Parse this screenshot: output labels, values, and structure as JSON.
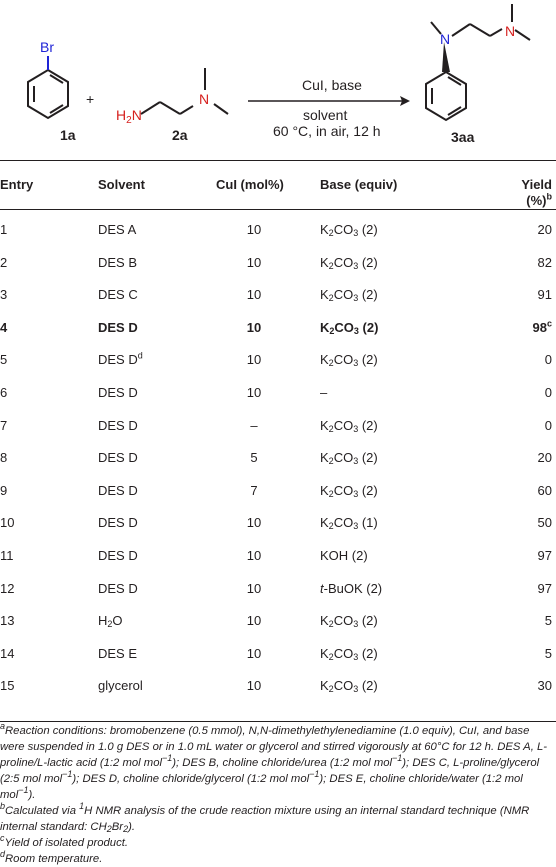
{
  "scheme": {
    "reactant1_substituent": "Br",
    "reactant1_label": "1a",
    "plus": "+",
    "reactant2_h2n": "H2N",
    "reactant2_n": "N",
    "reactant2_label": "2a",
    "catalyst_text": "CuI, base",
    "solvent_text": "solvent",
    "conditions_text": "60 °C, in air, 12 h",
    "product_n1": "N",
    "product_n2": "N",
    "product_label": "3aa"
  },
  "table": {
    "headers": {
      "entry": "Entry",
      "solvent": "Solvent",
      "cui": "CuI (mol%)",
      "base": "Base (equiv)",
      "yield_line1": "Yield",
      "yield_line2": "(%)",
      "yield_sup": "b"
    },
    "rows": [
      {
        "entry": "1",
        "solvent": "DES A",
        "solvent_sup": "",
        "cui": "10",
        "base_pre": "K",
        "base_sub1": "2",
        "base_mid": "CO",
        "base_sub2": "3",
        "base_post": " (2)",
        "yield": "20",
        "yield_sup": "",
        "bold": false
      },
      {
        "entry": "2",
        "solvent": "DES B",
        "solvent_sup": "",
        "cui": "10",
        "base_pre": "K",
        "base_sub1": "2",
        "base_mid": "CO",
        "base_sub2": "3",
        "base_post": " (2)",
        "yield": "82",
        "yield_sup": "",
        "bold": false
      },
      {
        "entry": "3",
        "solvent": "DES C",
        "solvent_sup": "",
        "cui": "10",
        "base_pre": "K",
        "base_sub1": "2",
        "base_mid": "CO",
        "base_sub2": "3",
        "base_post": " (2)",
        "yield": "91",
        "yield_sup": "",
        "bold": false
      },
      {
        "entry": "4",
        "solvent": "DES D",
        "solvent_sup": "",
        "cui": "10",
        "base_pre": "K",
        "base_sub1": "2",
        "base_mid": "CO",
        "base_sub2": "3",
        "base_post": " (2)",
        "yield": "98",
        "yield_sup": "c",
        "bold": true
      },
      {
        "entry": "5",
        "solvent": "DES D",
        "solvent_sup": "d",
        "cui": "10",
        "base_pre": "K",
        "base_sub1": "2",
        "base_mid": "CO",
        "base_sub2": "3",
        "base_post": " (2)",
        "yield": "0",
        "yield_sup": "",
        "bold": false
      },
      {
        "entry": "6",
        "solvent": "DES D",
        "solvent_sup": "",
        "cui": "10",
        "base_pre": "–",
        "base_sub1": "",
        "base_mid": "",
        "base_sub2": "",
        "base_post": "",
        "yield": "0",
        "yield_sup": "",
        "bold": false
      },
      {
        "entry": "7",
        "solvent": "DES D",
        "solvent_sup": "",
        "cui": "–",
        "base_pre": "K",
        "base_sub1": "2",
        "base_mid": "CO",
        "base_sub2": "3",
        "base_post": " (2)",
        "yield": "0",
        "yield_sup": "",
        "bold": false
      },
      {
        "entry": "8",
        "solvent": "DES D",
        "solvent_sup": "",
        "cui": "5",
        "base_pre": "K",
        "base_sub1": "2",
        "base_mid": "CO",
        "base_sub2": "3",
        "base_post": " (2)",
        "yield": "20",
        "yield_sup": "",
        "bold": false
      },
      {
        "entry": "9",
        "solvent": "DES D",
        "solvent_sup": "",
        "cui": "7",
        "base_pre": "K",
        "base_sub1": "2",
        "base_mid": "CO",
        "base_sub2": "3",
        "base_post": " (2)",
        "yield": "60",
        "yield_sup": "",
        "bold": false
      },
      {
        "entry": "10",
        "solvent": "DES D",
        "solvent_sup": "",
        "cui": "10",
        "base_pre": "K",
        "base_sub1": "2",
        "base_mid": "CO",
        "base_sub2": "3",
        "base_post": " (1)",
        "yield": "50",
        "yield_sup": "",
        "bold": false
      },
      {
        "entry": "11",
        "solvent": "DES D",
        "solvent_sup": "",
        "cui": "10",
        "base_pre": "KOH (2)",
        "base_sub1": "",
        "base_mid": "",
        "base_sub2": "",
        "base_post": "",
        "yield": "97",
        "yield_sup": "",
        "bold": false
      },
      {
        "entry": "12",
        "solvent": "DES D",
        "solvent_sup": "",
        "cui": "10",
        "base_pre": "t",
        "base_pre_italic": true,
        "base_sub1": "",
        "base_mid": "-BuOK (2)",
        "base_sub2": "",
        "base_post": "",
        "yield": "97",
        "yield_sup": "",
        "bold": false
      },
      {
        "entry": "13",
        "solvent": "H",
        "solvent_sub": "2",
        "solvent_tail": "O",
        "solvent_sup": "",
        "cui": "10",
        "base_pre": "K",
        "base_sub1": "2",
        "base_mid": "CO",
        "base_sub2": "3",
        "base_post": " (2)",
        "yield": "5",
        "yield_sup": "",
        "bold": false
      },
      {
        "entry": "14",
        "solvent": "DES E",
        "solvent_sup": "",
        "cui": "10",
        "base_pre": "K",
        "base_sub1": "2",
        "base_mid": "CO",
        "base_sub2": "3",
        "base_post": " (2)",
        "yield": "5",
        "yield_sup": "",
        "bold": false
      },
      {
        "entry": "15",
        "solvent": "glycerol",
        "solvent_sup": "",
        "cui": "10",
        "base_pre": "K",
        "base_sub1": "2",
        "base_mid": "CO",
        "base_sub2": "3",
        "base_post": " (2)",
        "yield": "30",
        "yield_sup": "",
        "bold": false
      }
    ]
  },
  "footnotes": {
    "a_mark": "a",
    "a_text": "Reaction conditions: bromobenzene (0.5 mmol), N,N-dimethylethylenediamine (1.0 equiv), CuI, and base were suspended in 1.0 g DES or in 1.0 mL water or glycerol and stirred vigorously at 60°C for 12 h. DES A, L-proline/L-lactic acid (1:2 mol mol−1); DES B, choline chloride/urea (1:2 mol mol−1); DES C, L-proline/glycerol (2:5 mol mol−1); DES D, choline chloride/glycerol (1:2 mol mol−1); DES E, choline chloride/water (1:2 mol mol−1).",
    "b_mark": "b",
    "b_text": "Calculated via 1H NMR analysis of the crude reaction mixture using an internal standard technique (NMR internal standard: CH2Br2).",
    "c_mark": "c",
    "c_text": "Yield of isolated product.",
    "d_mark": "d",
    "d_text": "Room temperature."
  },
  "colors": {
    "text": "#231f20",
    "heteroatom_blue": "#1f24d6",
    "heteroatom_red": "#d6211f"
  }
}
